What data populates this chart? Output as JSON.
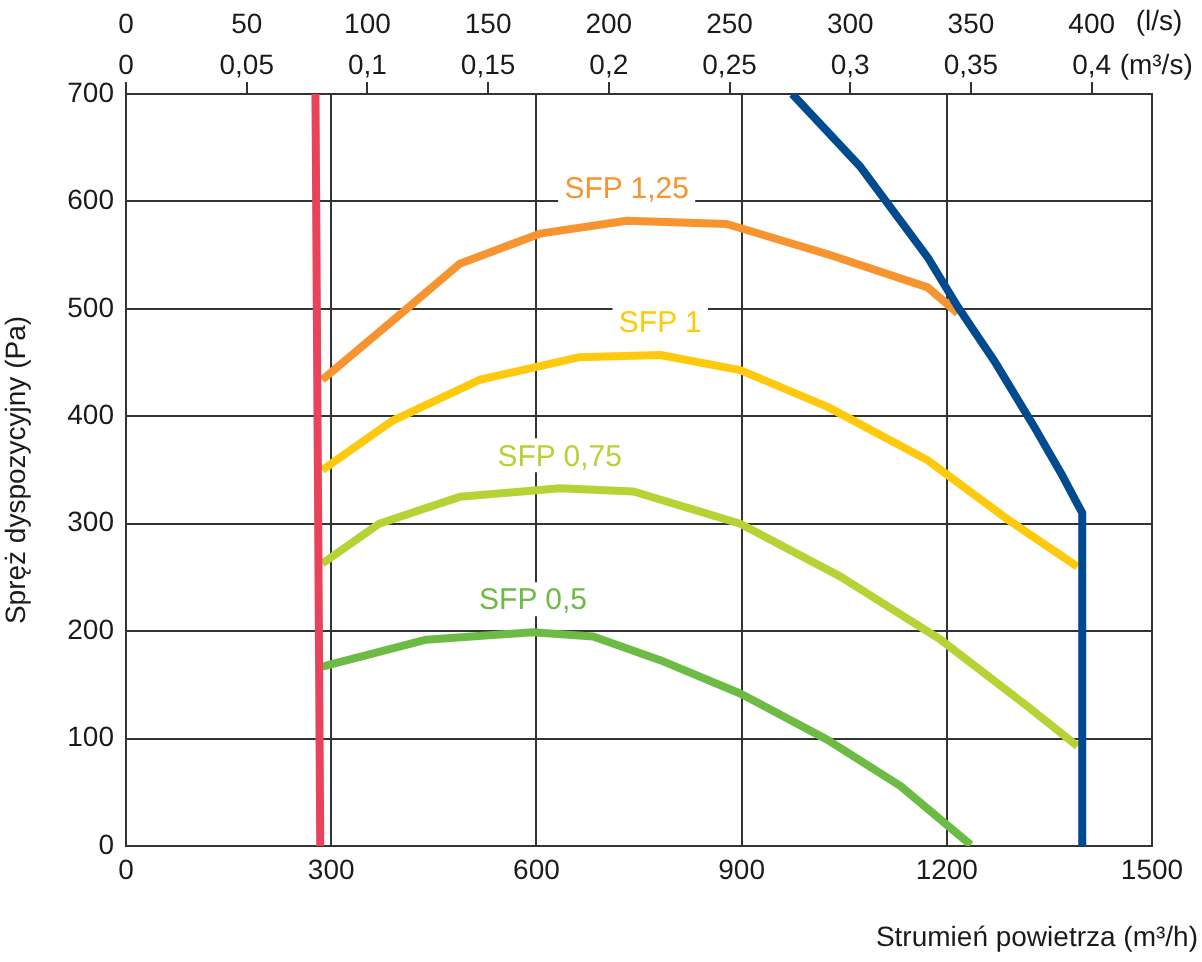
{
  "chart_data": {
    "type": "line",
    "xlabel": "Strumień powietrza (m³/h)",
    "ylabel": "Spręż dyspozycyjny (Pa)",
    "x2label": "(l/s)",
    "xlim": [
      0,
      1500
    ],
    "xticks": [
      0,
      300,
      600,
      900,
      1200,
      1500
    ],
    "x2lim": [
      0,
      425
    ],
    "x2ticks": [
      0,
      50,
      100,
      150,
      200,
      250,
      300,
      350,
      400
    ],
    "annotations": [
      "0",
      "0,05",
      "0,1",
      "0,15",
      "0,2",
      "0,25",
      "0,3",
      "0,35",
      "0,4",
      "(m³/s)"
    ],
    "ylim": [
      0,
      700
    ],
    "yticks": [
      0,
      100,
      200,
      300,
      400,
      500,
      600,
      700
    ],
    "grid": true,
    "legend": false,
    "marker": "none",
    "line_style": "solid",
    "series": [
      {
        "color": "#e8435a",
        "x": [
          277,
          284
        ],
        "values": [
          700,
          0
        ]
      },
      {
        "color": "#004a8f",
        "x": [
          974,
          1074,
          1172,
          1216,
          1269,
          1328,
          1367,
          1398,
          1398
        ],
        "values": [
          700,
          632,
          548,
          502,
          452,
          390,
          347,
          310,
          0
        ]
      },
      {
        "name": "SFP 1,25",
        "color": "#f7942f",
        "x": [
          287,
          390,
          488,
          605,
          732,
          878,
          1025,
          1172,
          1216
        ],
        "values": [
          434,
          489,
          542,
          570,
          582,
          579,
          551,
          520,
          496
        ]
      },
      {
        "name": "SFP 1",
        "color": "#ffc90e",
        "x": [
          287,
          390,
          517,
          663,
          781,
          898,
          1025,
          1172,
          1289,
          1391
        ],
        "values": [
          350,
          396,
          434,
          455,
          457,
          443,
          409,
          359,
          304,
          260
        ]
      },
      {
        "name": "SFP 0,75",
        "color": "#b5d334",
        "x": [
          287,
          370,
          488,
          634,
          742,
          898,
          1044,
          1191,
          1318,
          1391
        ],
        "values": [
          263,
          300,
          325,
          333,
          330,
          300,
          251,
          192,
          130,
          93
        ]
      },
      {
        "name": "SFP 0,5",
        "color": "#6cbb45",
        "x": [
          287,
          439,
          595,
          683,
          781,
          898,
          1025,
          1132,
          1235
        ],
        "values": [
          167,
          192,
          199,
          195,
          173,
          142,
          99,
          56,
          1
        ]
      }
    ]
  }
}
